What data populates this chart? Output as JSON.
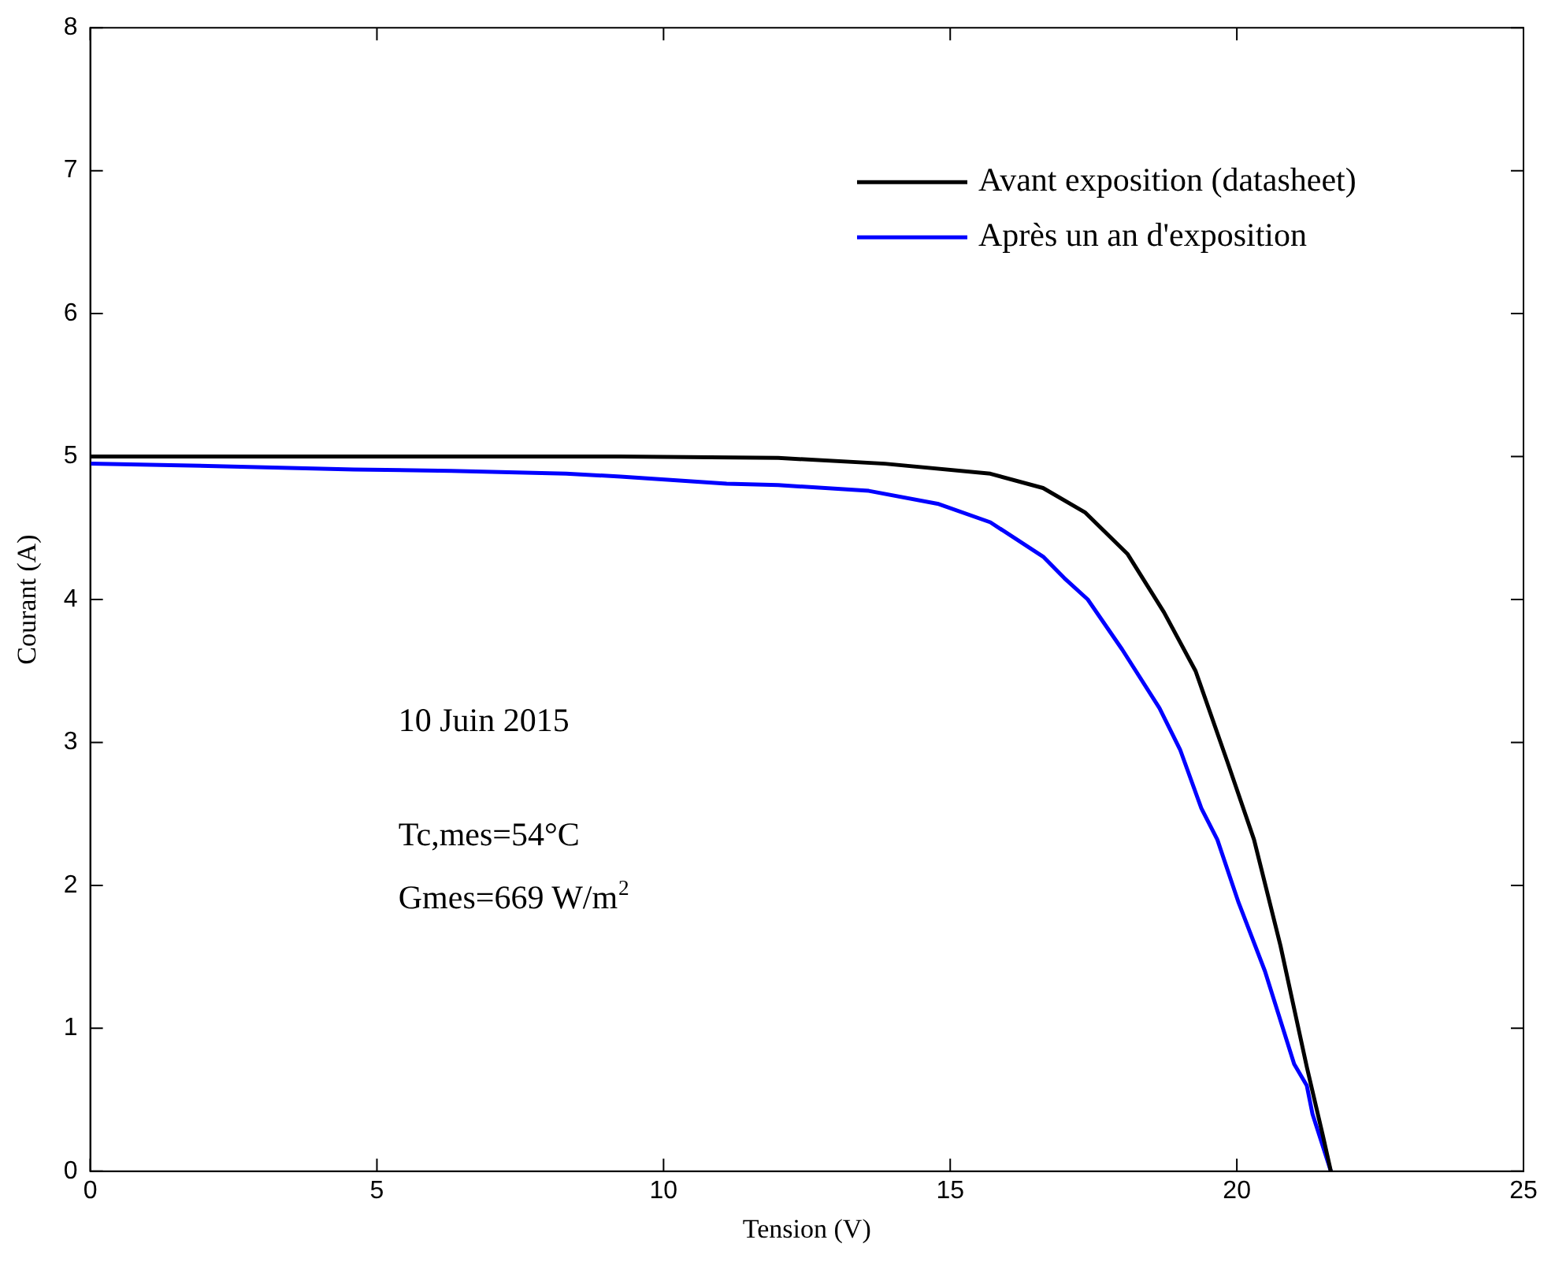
{
  "chart_data": {
    "type": "line",
    "xlabel": "Tension (V)",
    "ylabel": "Courant (A)",
    "xlim": [
      0,
      25
    ],
    "xticks": [
      0,
      5,
      10,
      15,
      20,
      25
    ],
    "ylim": [
      0,
      8
    ],
    "yticks": [
      0,
      1,
      2,
      3,
      4,
      5,
      6,
      7,
      8
    ],
    "grid": false,
    "legend": "top right",
    "marker": "none",
    "line_style": "solid",
    "annotations": [
      "10 Juin 2015",
      "Tc,mes=54°C",
      "Gmes=669 W/m$^{2}$"
    ],
    "series": [
      {
        "name": "Avant exposition (datasheet)",
        "color": "#000000",
        "x": [
          0,
          9.25,
          12,
          13.86,
          15.7,
          16.62,
          17.35,
          18.09,
          18.73,
          19.28,
          19.83,
          20.3,
          20.76,
          21.22,
          21.5,
          21.64
        ],
        "values": [
          5.0,
          5.0,
          4.99,
          4.95,
          4.88,
          4.78,
          4.61,
          4.32,
          3.91,
          3.5,
          2.87,
          2.32,
          1.58,
          0.73,
          0.25,
          0
        ]
      },
      {
        "name": "Après un an d'exposition",
        "color": "#0000ff",
        "x": [
          0,
          1.4,
          4.6,
          6.3,
          8.3,
          9.25,
          11.1,
          12,
          13.58,
          14.78,
          15.7,
          16.62,
          16.99,
          17.4,
          18.0,
          18.65,
          19.01,
          19.38,
          19.66,
          20.03,
          20.49,
          21.0,
          21.22,
          21.32,
          21.64
        ],
        "values": [
          4.95,
          4.94,
          4.91,
          4.9,
          4.88,
          4.86,
          4.81,
          4.8,
          4.76,
          4.67,
          4.54,
          4.3,
          4.15,
          4.0,
          3.65,
          3.24,
          2.95,
          2.54,
          2.32,
          1.88,
          1.4,
          0.75,
          0.6,
          0.4,
          0
        ]
      }
    ]
  }
}
